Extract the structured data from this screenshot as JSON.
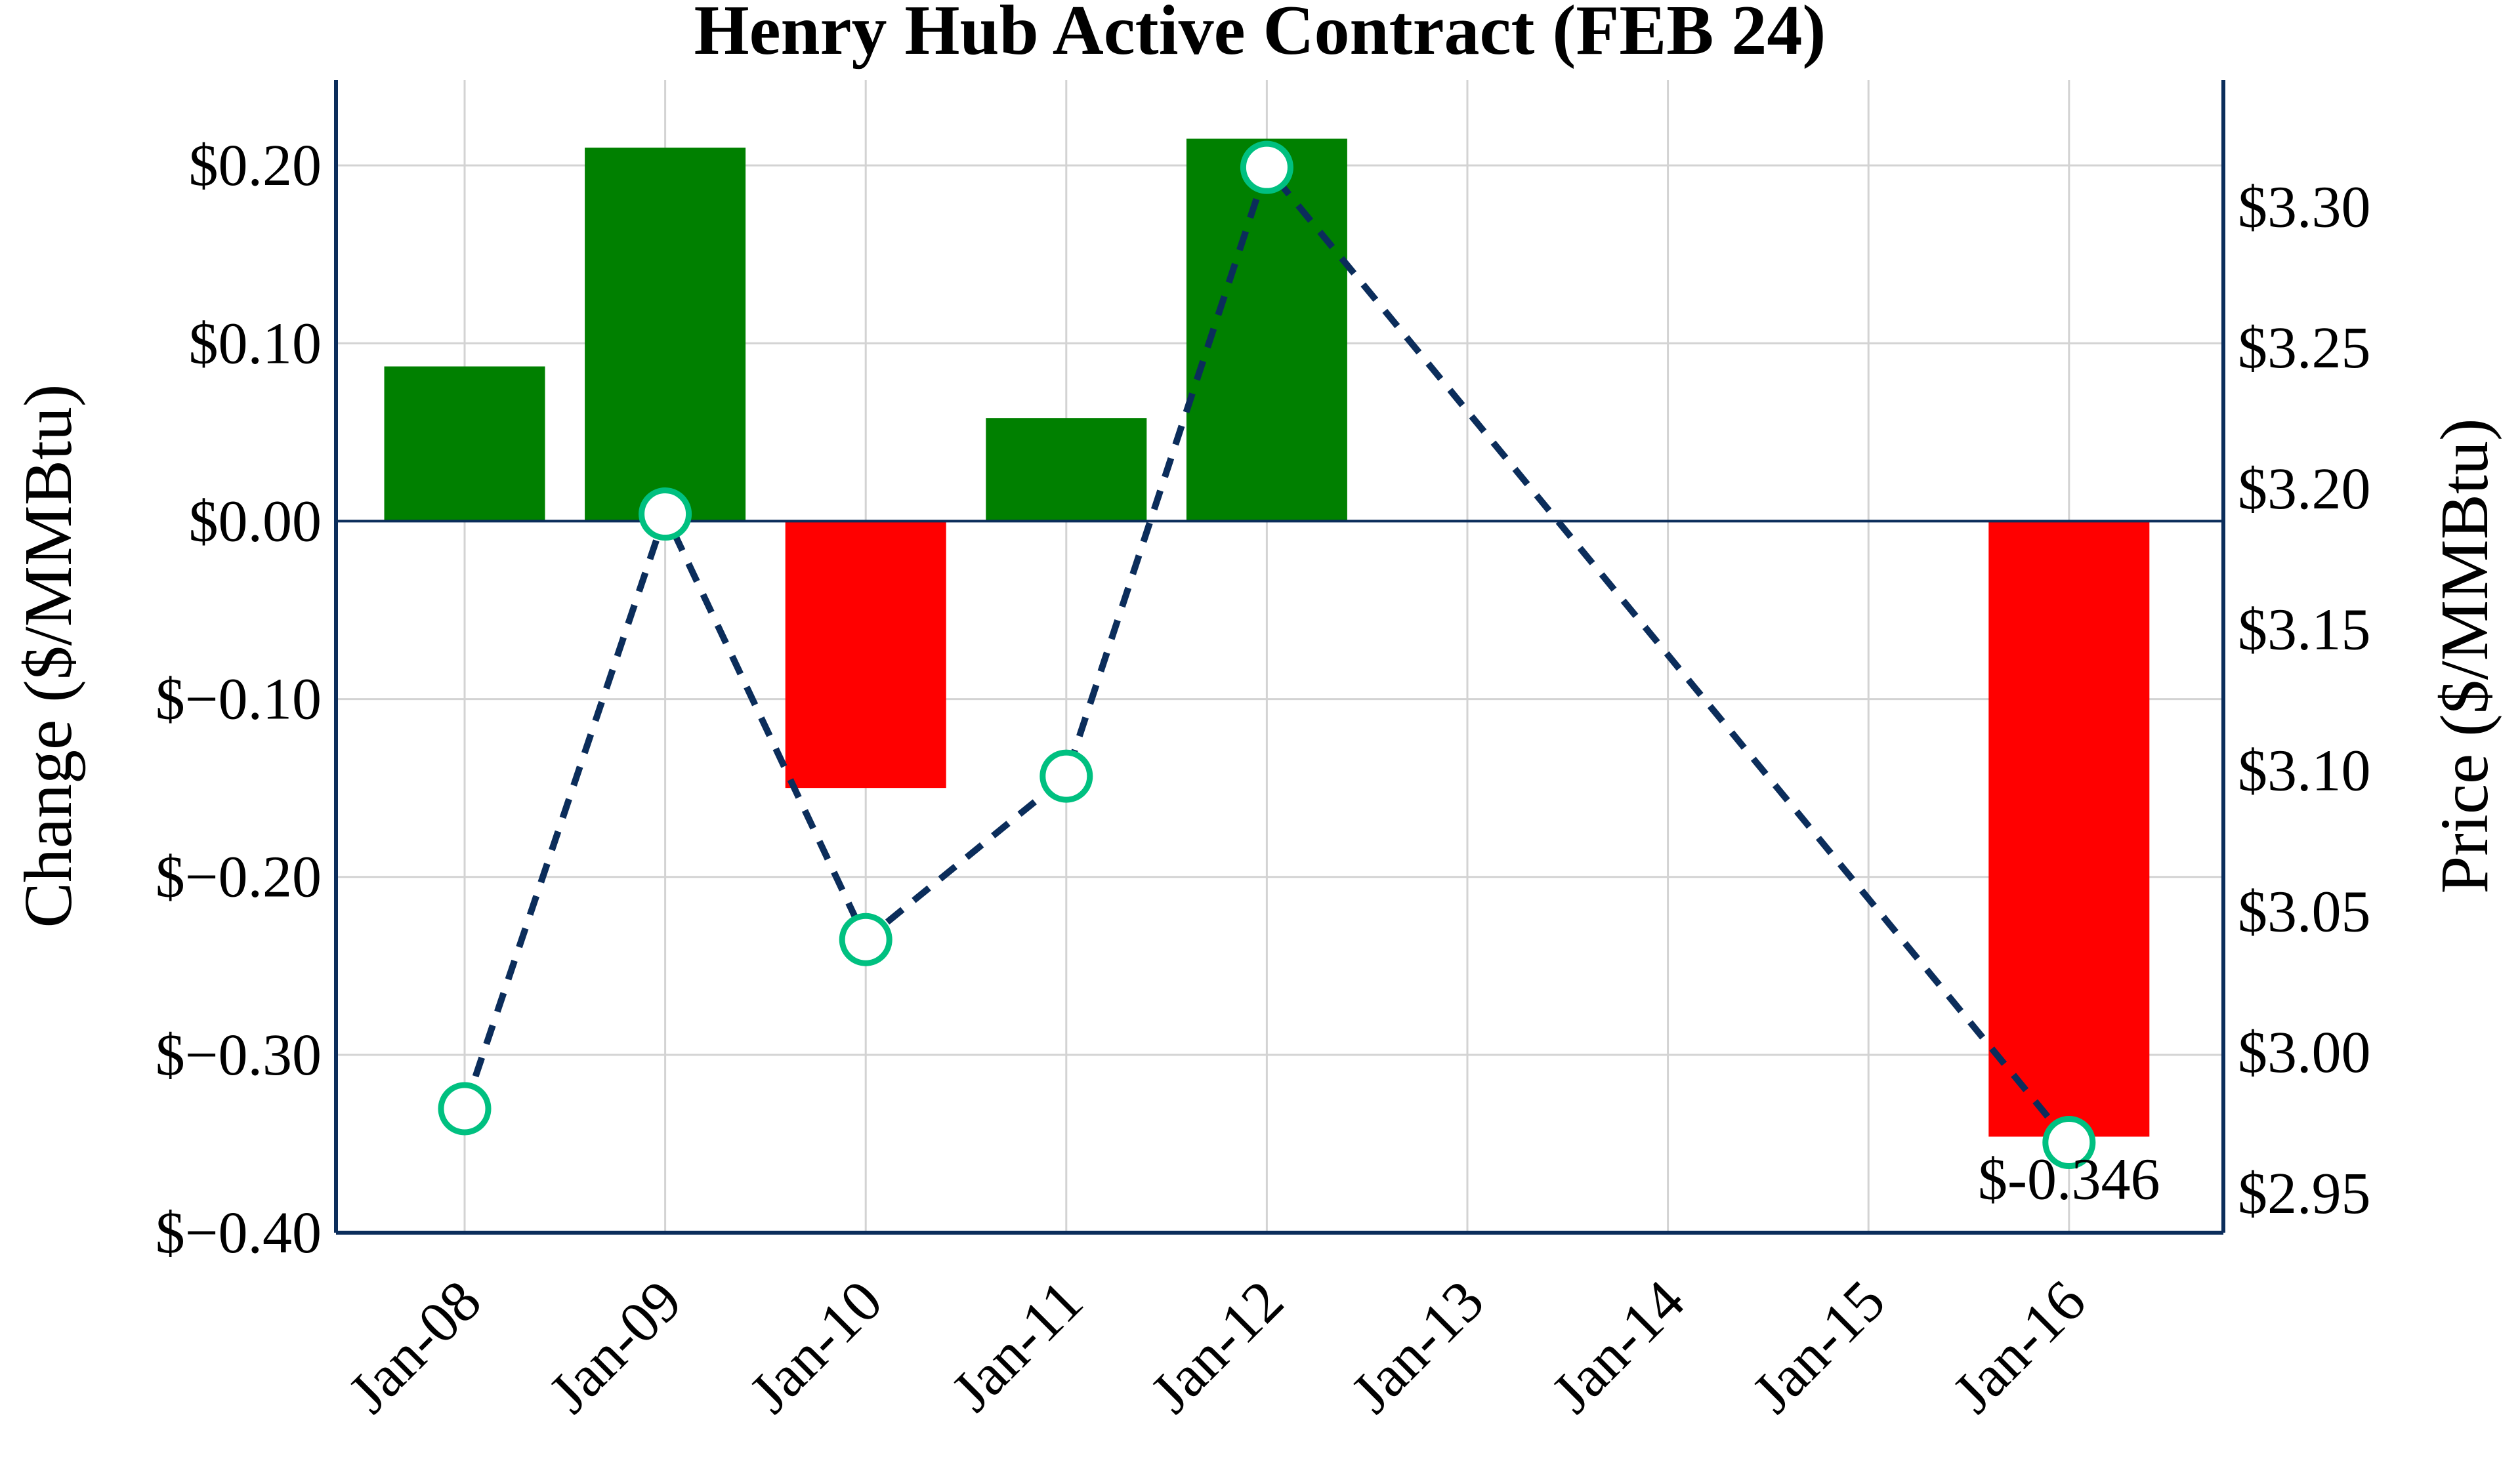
{
  "chart_data": {
    "type": "bar+line",
    "title": "Henry Hub Active Contract (FEB 24)",
    "categories": [
      "Jan-08",
      "Jan-09",
      "Jan-10",
      "Jan-11",
      "Jan-12",
      "Jan-13",
      "Jan-14",
      "Jan-15",
      "Jan-16"
    ],
    "ylabel_left": "Change ($/MMBtu)",
    "ylabel_right": "Price ($/MMBtu)",
    "ylim_left": [
      -0.4,
      0.248
    ],
    "ylim_right": [
      2.936,
      3.345
    ],
    "yticks_left": [
      {
        "value": 0.2,
        "label": "$0.20"
      },
      {
        "value": 0.1,
        "label": "$0.10"
      },
      {
        "value": 0.0,
        "label": "$0.00"
      },
      {
        "value": -0.1,
        "label": "$−0.10"
      },
      {
        "value": -0.2,
        "label": "$−0.20"
      },
      {
        "value": -0.3,
        "label": "$−0.30"
      },
      {
        "value": -0.4,
        "label": "$−0.40"
      }
    ],
    "yticks_right": [
      {
        "value": 3.3,
        "label": "$3.30"
      },
      {
        "value": 3.25,
        "label": "$3.25"
      },
      {
        "value": 3.2,
        "label": "$3.20"
      },
      {
        "value": 3.15,
        "label": "$3.15"
      },
      {
        "value": 3.1,
        "label": "$3.10"
      },
      {
        "value": 3.05,
        "label": "$3.05"
      },
      {
        "value": 3.0,
        "label": "$3.00"
      },
      {
        "value": 2.95,
        "label": "$2.95"
      }
    ],
    "grid": true,
    "series": [
      {
        "type": "bar",
        "axis": "left",
        "points": [
          {
            "x": "Jan-08",
            "y": 0.087
          },
          {
            "x": "Jan-09",
            "y": 0.21
          },
          {
            "x": "Jan-10",
            "y": -0.15
          },
          {
            "x": "Jan-11",
            "y": 0.058
          },
          {
            "x": "Jan-12",
            "y": 0.215
          },
          {
            "x": "Jan-16",
            "y": -0.346
          }
        ]
      },
      {
        "type": "line",
        "axis": "right",
        "style": "dashed-markers",
        "points": [
          {
            "x": "Jan-08",
            "y": 2.98
          },
          {
            "x": "Jan-09",
            "y": 3.191
          },
          {
            "x": "Jan-10",
            "y": 3.04
          },
          {
            "x": "Jan-11",
            "y": 3.098
          },
          {
            "x": "Jan-12",
            "y": 3.314
          },
          {
            "x": "Jan-16",
            "y": 2.968
          }
        ]
      }
    ],
    "annotations": [
      {
        "x": "Jan-16",
        "text": "$-0.346"
      }
    ],
    "colors": {
      "positive": "#008000",
      "negative": "#ff0000",
      "line": "#0b2d5b",
      "marker": "#00c080",
      "axis": "#0b2d5b",
      "grid": "#d3d3d3"
    }
  }
}
